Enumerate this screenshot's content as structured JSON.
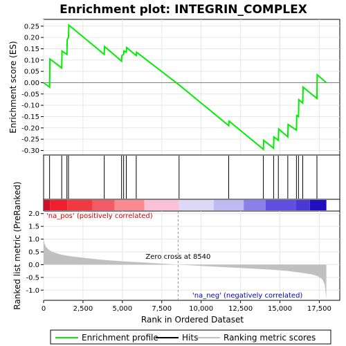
{
  "chart_data": {
    "type": "line",
    "title": "Enrichment plot: INTEGRIN_COMPLEX",
    "ylabel_es": "Enrichment score (ES)",
    "ylabel_rank": "Ranked list metric (PreRanked)",
    "xlabel": "Rank in Ordered Dataset",
    "x_range": [
      0,
      18800
    ],
    "es_ylim": [
      -0.32,
      0.28
    ],
    "es_yticks": [
      -0.3,
      -0.25,
      -0.2,
      -0.15,
      -0.1,
      -0.05,
      0.0,
      0.05,
      0.1,
      0.15,
      0.2,
      0.25
    ],
    "es_ytick_labels": [
      "-0.30",
      "-0.25",
      "-0.20",
      "-0.15",
      "-0.10",
      "-0.05",
      "0.00",
      "0.05",
      "0.10",
      "0.15",
      "0.20",
      "0.25"
    ],
    "rank_ylim": [
      -1.4,
      2.1
    ],
    "rank_yticks": [
      -1.0,
      -0.5,
      0.0,
      0.5,
      1.0,
      1.5,
      2.0
    ],
    "rank_ytick_labels": [
      "-1.0",
      "-0.5",
      "0.0",
      "0.5",
      "1.0",
      "1.5",
      "2.0"
    ],
    "xticks": [
      0,
      2500,
      5000,
      7500,
      10000,
      12500,
      15000,
      17500
    ],
    "xtick_labels": [
      "0",
      "2,500",
      "5,000",
      "7,500",
      "10,000",
      "12,500",
      "15,000",
      "17,500"
    ],
    "grid": true,
    "series": [
      {
        "name": "Enrichment profile",
        "color": "#00ee00",
        "x": [
          0,
          380,
          400,
          1150,
          1170,
          1480,
          1500,
          1580,
          1600,
          3850,
          3870,
          4950,
          4970,
          5080,
          5100,
          5250,
          5270,
          5880,
          5900,
          8600,
          11750,
          11770,
          13950,
          13970,
          14600,
          14620,
          14900,
          14920,
          15500,
          15520,
          16050,
          16070,
          16180,
          16200,
          16450,
          16470,
          17350,
          17370,
          17950
        ],
        "y": [
          0.0,
          -0.02,
          0.105,
          0.065,
          0.14,
          0.125,
          0.19,
          0.2,
          0.255,
          0.125,
          0.16,
          0.095,
          0.12,
          0.125,
          0.14,
          0.135,
          0.155,
          0.12,
          0.135,
          -0.01,
          -0.19,
          -0.17,
          -0.295,
          -0.255,
          -0.29,
          -0.24,
          -0.255,
          -0.205,
          -0.24,
          -0.185,
          -0.21,
          -0.145,
          -0.15,
          -0.075,
          -0.09,
          -0.02,
          -0.07,
          0.035,
          0.0
        ]
      }
    ],
    "hits": [
      380,
      1150,
      1480,
      1580,
      3850,
      4950,
      5080,
      5250,
      5880,
      8600,
      11750,
      13950,
      14600,
      14900,
      15500,
      16050,
      16180,
      16450,
      17350
    ],
    "ranked_metric": {
      "x": [
        0,
        50,
        150,
        300,
        500,
        800,
        1200,
        1800,
        2500,
        3500,
        5000,
        6500,
        8540,
        10000,
        11500,
        13000,
        14500,
        15500,
        16500,
        17000,
        17400,
        17700,
        17850,
        17950
      ],
      "y": [
        1.05,
        0.85,
        0.7,
        0.6,
        0.52,
        0.45,
        0.38,
        0.32,
        0.27,
        0.2,
        0.13,
        0.08,
        0.0,
        -0.05,
        -0.1,
        -0.15,
        -0.2,
        -0.25,
        -0.33,
        -0.38,
        -0.45,
        -0.58,
        -0.8,
        -1.35
      ]
    },
    "color_bar": [
      {
        "from": 0,
        "to": 400,
        "color": "#d0102a"
      },
      {
        "from": 400,
        "to": 1500,
        "color": "#ee2030"
      },
      {
        "from": 1500,
        "to": 3100,
        "color": "#f03a40"
      },
      {
        "from": 3100,
        "to": 4500,
        "color": "#f45a66"
      },
      {
        "from": 4500,
        "to": 6400,
        "color": "#f88a90"
      },
      {
        "from": 6400,
        "to": 8600,
        "color": "#fac0d8"
      },
      {
        "from": 8600,
        "to": 10800,
        "color": "#dcd8f6"
      },
      {
        "from": 10800,
        "to": 12700,
        "color": "#c0baf2"
      },
      {
        "from": 12700,
        "to": 14100,
        "color": "#8a80ea"
      },
      {
        "from": 14100,
        "to": 16000,
        "color": "#6050e0"
      },
      {
        "from": 16000,
        "to": 16900,
        "color": "#4838d6"
      },
      {
        "from": 16900,
        "to": 17950,
        "color": "#2010c0"
      }
    ],
    "zero_cross_x": 8540,
    "zero_cross_label": "Zero cross at 8540",
    "pos_label": "'na_pos' (positively correlated)",
    "neg_label": "'na_neg' (negatively correlated)",
    "legend": [
      "Enrichment profile",
      "Hits",
      "Ranking metric scores"
    ]
  }
}
